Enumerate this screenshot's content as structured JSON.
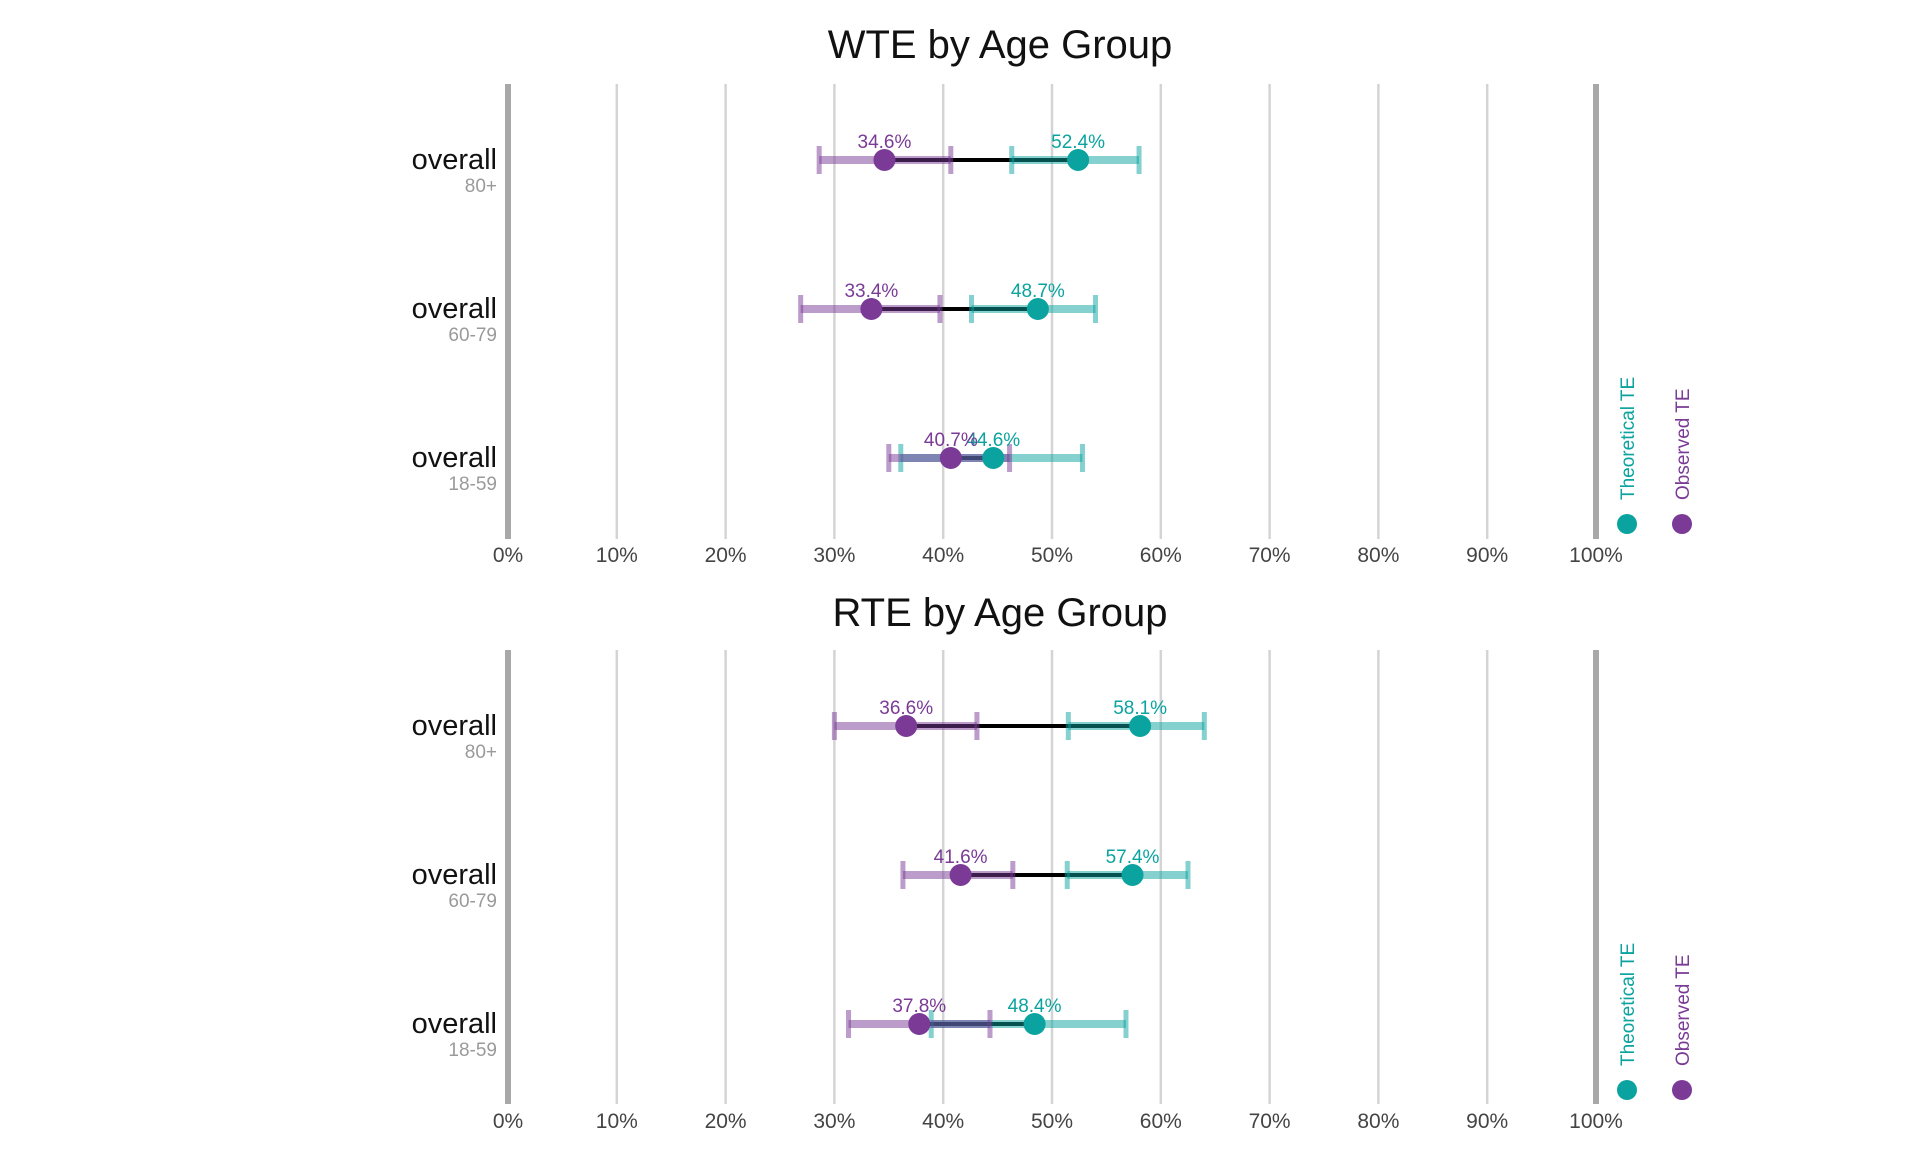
{
  "colors": {
    "theoretical": "#0aa39f",
    "observed": "#7a3a96",
    "grid": "#d4d4d4",
    "axis": "#a8a8a8",
    "connector": "#000000"
  },
  "chart_data": [
    {
      "type": "dot-range",
      "title": "WTE by Age Group",
      "xlim": [
        0,
        100
      ],
      "x_ticks": [
        "0%",
        "10%",
        "20%",
        "30%",
        "40%",
        "50%",
        "60%",
        "70%",
        "80%",
        "90%",
        "100%"
      ],
      "legend": {
        "placement": "right",
        "series": [
          "Theoretical TE",
          "Observed TE"
        ]
      },
      "rows": [
        {
          "label": "overall",
          "sublabel": "80+",
          "observed": {
            "value": 34.6,
            "low": 28.6,
            "high": 40.7,
            "label": "34.6%"
          },
          "theoretical": {
            "value": 52.4,
            "low": 46.3,
            "high": 58.0,
            "label": "52.4%"
          }
        },
        {
          "label": "overall",
          "sublabel": "60-79",
          "observed": {
            "value": 33.4,
            "low": 26.9,
            "high": 39.7,
            "label": "33.4%"
          },
          "theoretical": {
            "value": 48.7,
            "low": 42.6,
            "high": 54.0,
            "label": "48.7%"
          }
        },
        {
          "label": "overall",
          "sublabel": "18-59",
          "observed": {
            "value": 40.7,
            "low": 35.0,
            "high": 46.1,
            "label": "40.7%"
          },
          "theoretical": {
            "value": 44.6,
            "low": 36.1,
            "high": 52.8,
            "label": "44.6%"
          }
        }
      ]
    },
    {
      "type": "dot-range",
      "title": "RTE by Age Group",
      "xlim": [
        0,
        100
      ],
      "x_ticks": [
        "0%",
        "10%",
        "20%",
        "30%",
        "40%",
        "50%",
        "60%",
        "70%",
        "80%",
        "90%",
        "100%"
      ],
      "legend": {
        "placement": "right",
        "series": [
          "Theoretical TE",
          "Observed TE"
        ]
      },
      "rows": [
        {
          "label": "overall",
          "sublabel": "80+",
          "observed": {
            "value": 36.6,
            "low": 30.0,
            "high": 43.1,
            "label": "36.6%"
          },
          "theoretical": {
            "value": 58.1,
            "low": 51.5,
            "high": 64.0,
            "label": "58.1%"
          }
        },
        {
          "label": "overall",
          "sublabel": "60-79",
          "observed": {
            "value": 41.6,
            "low": 36.3,
            "high": 46.4,
            "label": "41.6%"
          },
          "theoretical": {
            "value": 57.4,
            "low": 51.4,
            "high": 62.5,
            "label": "57.4%"
          }
        },
        {
          "label": "overall",
          "sublabel": "18-59",
          "observed": {
            "value": 37.8,
            "low": 31.3,
            "high": 44.3,
            "label": "37.8%"
          },
          "theoretical": {
            "value": 48.4,
            "low": 38.9,
            "high": 56.8,
            "label": "48.4%"
          }
        }
      ]
    }
  ]
}
